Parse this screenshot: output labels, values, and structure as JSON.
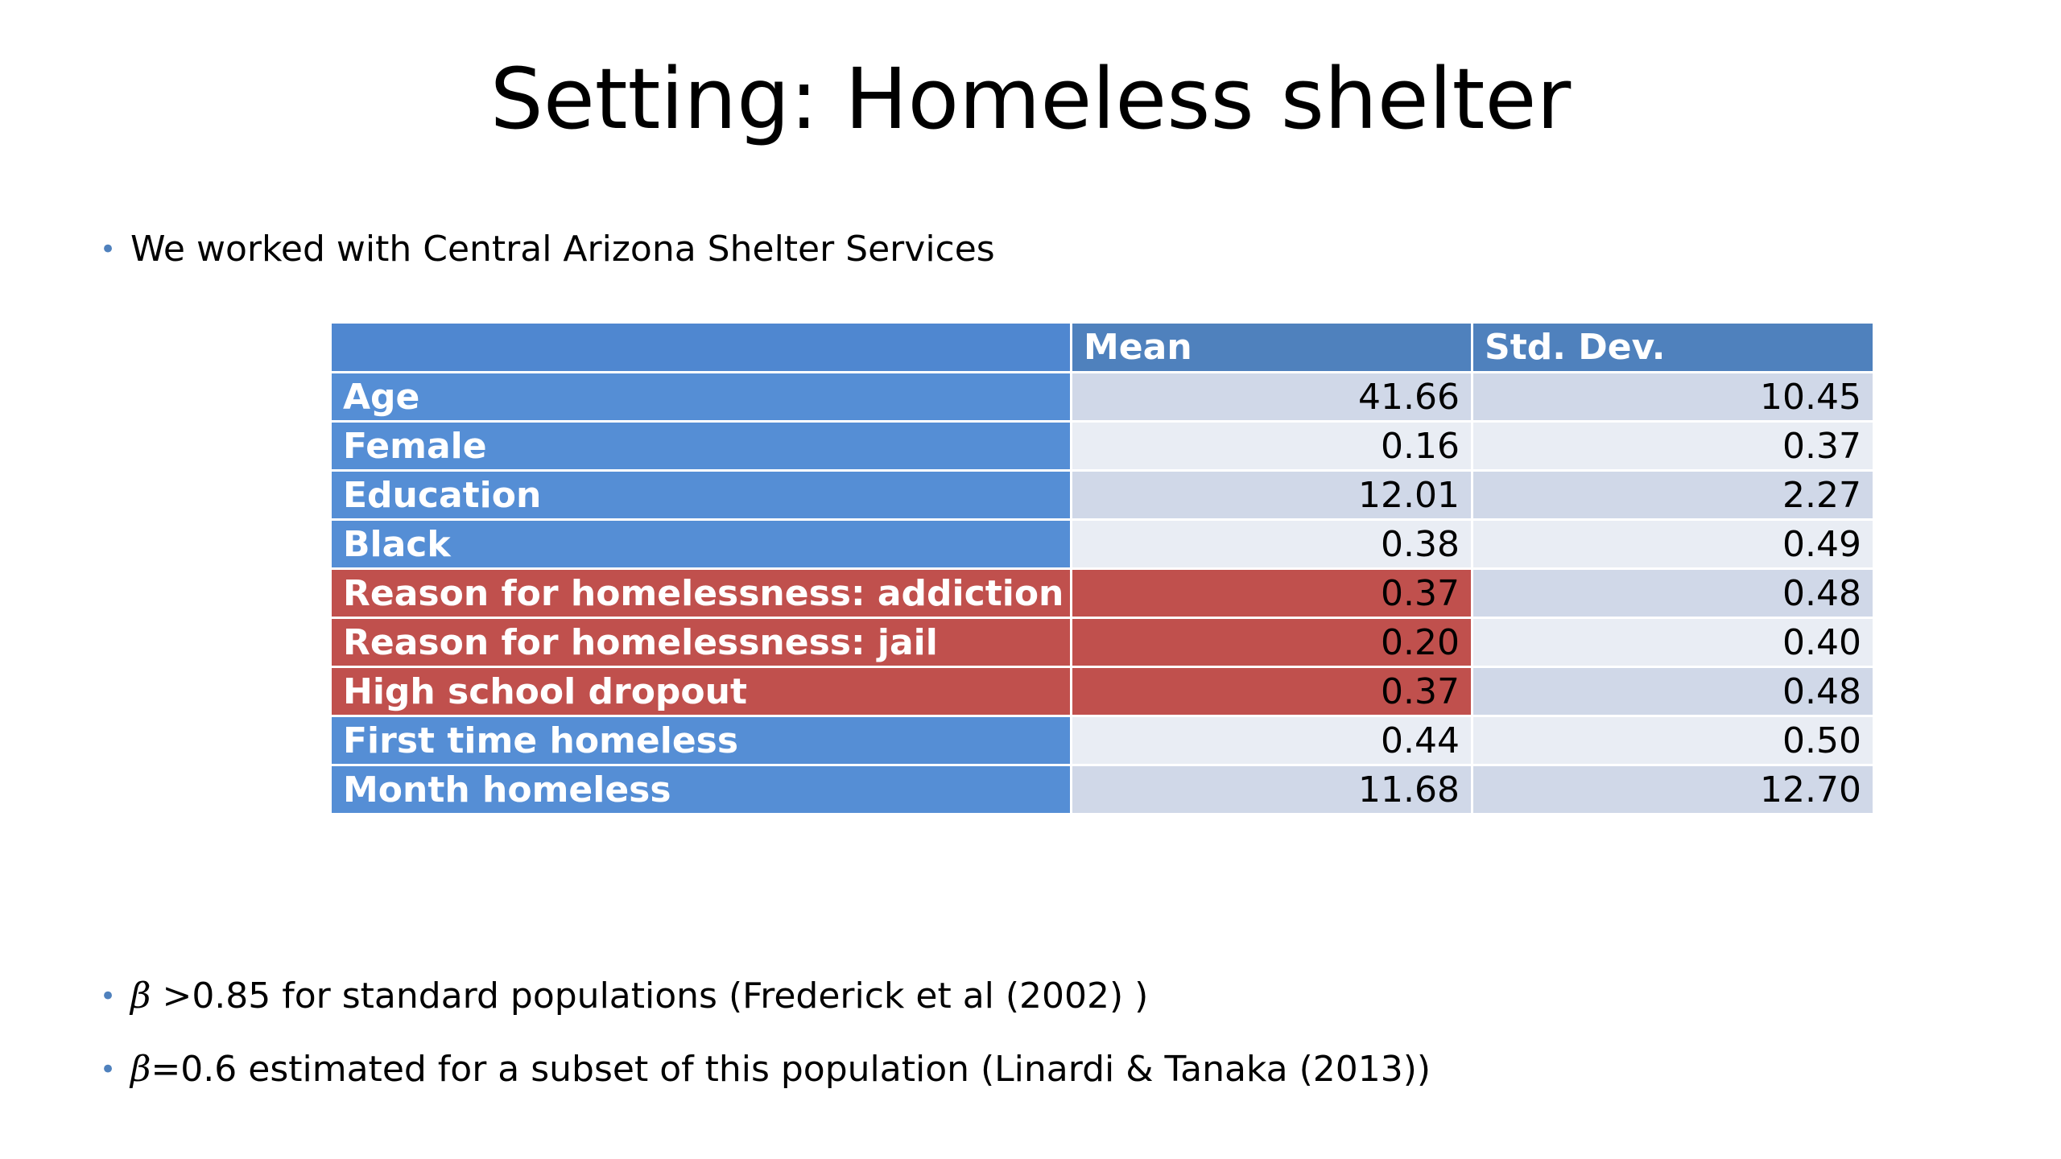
{
  "title": "Setting: Homeless shelter",
  "bullets": {
    "intro": "We worked with Central Arizona Shelter Services",
    "beta1_symbol": "β",
    "beta1_gt": ">",
    "beta1_text": "0.85 for standard populations (Frederick et al (2002) )",
    "beta2_symbol": "β",
    "beta2_text": "=0.6 estimated for a subset of this population (Linardi & Tanaka (2013))"
  },
  "table": {
    "headers": [
      "",
      "Mean",
      "Std. Dev."
    ],
    "rows": [
      {
        "label": "Age",
        "mean": "41.66",
        "sd": "10.45",
        "highlight": false
      },
      {
        "label": "Female",
        "mean": "0.16",
        "sd": "0.37",
        "highlight": false
      },
      {
        "label": "Education",
        "mean": "12.01",
        "sd": "2.27",
        "highlight": false
      },
      {
        "label": "Black",
        "mean": "0.38",
        "sd": "0.49",
        "highlight": false
      },
      {
        "label": "Reason for homelessness: addiction",
        "mean": "0.37",
        "sd": "0.48",
        "highlight": true
      },
      {
        "label": "Reason for homelessness: jail",
        "mean": "0.20",
        "sd": "0.40",
        "highlight": true
      },
      {
        "label": "High school dropout",
        "mean": "0.37",
        "sd": "0.48",
        "highlight": true
      },
      {
        "label": "First time homeless",
        "mean": "0.44",
        "sd": "0.50",
        "highlight": false
      },
      {
        "label": "Month homeless",
        "mean": "11.68",
        "sd": "12.70",
        "highlight": false
      }
    ]
  },
  "colors": {
    "header_blue": "#4f81bd",
    "label_blue": "#558ed5",
    "highlight_red": "#c0504d",
    "band_dark": "#d0d8e8",
    "band_light": "#e9edf4",
    "bullet_dot": "#4f81bd"
  }
}
